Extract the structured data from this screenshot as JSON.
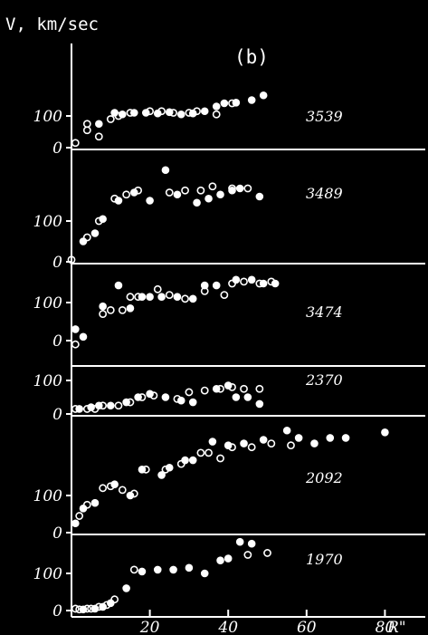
{
  "chart_data": {
    "type": "scatter",
    "figure_label": "(b)",
    "ylabel": "V, km/sec",
    "xlabel": "R\"",
    "xlim": [
      0,
      90
    ],
    "x_ticks": [
      20,
      40,
      60,
      80
    ],
    "x_tick_labels": [
      "20",
      "40",
      "60",
      "80"
    ],
    "legend": "none",
    "grid": false,
    "panels": [
      {
        "name": "3539",
        "y_ticks": [
          0,
          100
        ],
        "y_tick_labels": [
          "0",
          "100"
        ],
        "open": [
          [
            1,
            15
          ],
          [
            4,
            55
          ],
          [
            4,
            75
          ],
          [
            7,
            35
          ],
          [
            10,
            90
          ],
          [
            12,
            100
          ],
          [
            15,
            110
          ],
          [
            20,
            115
          ],
          [
            23,
            115
          ],
          [
            26,
            110
          ],
          [
            30,
            110
          ],
          [
            32,
            115
          ],
          [
            37,
            105
          ],
          [
            41,
            140
          ]
        ],
        "filled": [
          [
            7,
            75
          ],
          [
            11,
            110
          ],
          [
            13,
            105
          ],
          [
            16,
            110
          ],
          [
            19,
            110
          ],
          [
            22,
            108
          ],
          [
            25,
            112
          ],
          [
            28,
            105
          ],
          [
            31,
            108
          ],
          [
            34,
            115
          ],
          [
            37,
            130
          ],
          [
            39,
            140
          ],
          [
            42,
            142
          ],
          [
            46,
            150
          ],
          [
            49,
            165
          ]
        ]
      },
      {
        "name": "3489",
        "y_ticks": [
          0,
          100
        ],
        "y_tick_labels": [
          "0",
          "100"
        ],
        "open": [
          [
            0,
            5
          ],
          [
            4,
            60
          ],
          [
            7,
            100
          ],
          [
            11,
            155
          ],
          [
            14,
            165
          ],
          [
            17,
            175
          ],
          [
            25,
            170
          ],
          [
            29,
            175
          ],
          [
            33,
            175
          ],
          [
            36,
            185
          ],
          [
            41,
            180
          ],
          [
            45,
            180
          ]
        ],
        "filled": [
          [
            3,
            50
          ],
          [
            6,
            70
          ],
          [
            8,
            105
          ],
          [
            12,
            150
          ],
          [
            16,
            170
          ],
          [
            20,
            150
          ],
          [
            24,
            225
          ],
          [
            27,
            165
          ],
          [
            32,
            145
          ],
          [
            35,
            155
          ],
          [
            38,
            165
          ],
          [
            41,
            175
          ],
          [
            43,
            180
          ],
          [
            48,
            160
          ]
        ]
      },
      {
        "name": "3474",
        "y_ticks": [
          0,
          100
        ],
        "y_tick_labels": [
          "0",
          "100"
        ],
        "open": [
          [
            1,
            -10
          ],
          [
            8,
            70
          ],
          [
            10,
            80
          ],
          [
            13,
            80
          ],
          [
            15,
            115
          ],
          [
            17,
            115
          ],
          [
            22,
            135
          ],
          [
            25,
            120
          ],
          [
            29,
            110
          ],
          [
            34,
            130
          ],
          [
            39,
            120
          ],
          [
            41,
            150
          ],
          [
            44,
            155
          ],
          [
            48,
            150
          ],
          [
            51,
            155
          ]
        ],
        "filled": [
          [
            1,
            30
          ],
          [
            3,
            10
          ],
          [
            8,
            90
          ],
          [
            12,
            145
          ],
          [
            15,
            85
          ],
          [
            18,
            115
          ],
          [
            20,
            115
          ],
          [
            23,
            115
          ],
          [
            27,
            115
          ],
          [
            31,
            110
          ],
          [
            34,
            145
          ],
          [
            37,
            145
          ],
          [
            42,
            160
          ],
          [
            46,
            160
          ],
          [
            49,
            150
          ],
          [
            52,
            150
          ]
        ]
      },
      {
        "name": "2370",
        "y_ticks": [
          0,
          100
        ],
        "y_tick_labels": [
          "0",
          "100"
        ],
        "open": [
          [
            1,
            15
          ],
          [
            4,
            15
          ],
          [
            6,
            15
          ],
          [
            8,
            25
          ],
          [
            12,
            25
          ],
          [
            15,
            35
          ],
          [
            18,
            50
          ],
          [
            21,
            55
          ],
          [
            27,
            45
          ],
          [
            30,
            65
          ],
          [
            34,
            70
          ],
          [
            38,
            75
          ],
          [
            41,
            80
          ],
          [
            44,
            75
          ],
          [
            48,
            75
          ]
        ],
        "filled": [
          [
            2,
            15
          ],
          [
            5,
            20
          ],
          [
            7,
            25
          ],
          [
            10,
            25
          ],
          [
            14,
            35
          ],
          [
            17,
            50
          ],
          [
            20,
            60
          ],
          [
            24,
            50
          ],
          [
            28,
            40
          ],
          [
            31,
            35
          ],
          [
            37,
            75
          ],
          [
            40,
            85
          ],
          [
            42,
            50
          ],
          [
            45,
            50
          ],
          [
            48,
            30
          ]
        ]
      },
      {
        "name": "2092",
        "y_ticks": [
          0,
          100
        ],
        "y_tick_labels": [
          "0",
          "100"
        ],
        "open": [
          [
            2,
            45
          ],
          [
            4,
            75
          ],
          [
            8,
            120
          ],
          [
            10,
            125
          ],
          [
            13,
            115
          ],
          [
            16,
            105
          ],
          [
            19,
            170
          ],
          [
            24,
            170
          ],
          [
            28,
            185
          ],
          [
            33,
            215
          ],
          [
            35,
            215
          ],
          [
            38,
            200
          ],
          [
            41,
            230
          ],
          [
            46,
            230
          ],
          [
            51,
            240
          ],
          [
            56,
            235
          ]
        ],
        "filled": [
          [
            1,
            25
          ],
          [
            3,
            65
          ],
          [
            6,
            80
          ],
          [
            11,
            130
          ],
          [
            15,
            100
          ],
          [
            18,
            170
          ],
          [
            23,
            155
          ],
          [
            25,
            175
          ],
          [
            29,
            195
          ],
          [
            31,
            195
          ],
          [
            36,
            245
          ],
          [
            40,
            235
          ],
          [
            44,
            240
          ],
          [
            49,
            250
          ],
          [
            55,
            275
          ],
          [
            58,
            255
          ],
          [
            62,
            240
          ],
          [
            66,
            255
          ],
          [
            70,
            255
          ],
          [
            80,
            270
          ]
        ]
      },
      {
        "name": "1970",
        "y_ticks": [
          0,
          100
        ],
        "y_tick_labels": [
          "0",
          "100"
        ],
        "open": [
          [
            1,
            5
          ],
          [
            2,
            3
          ],
          [
            4,
            5
          ],
          [
            5,
            5
          ],
          [
            7,
            10
          ],
          [
            9,
            15
          ],
          [
            11,
            30
          ],
          [
            16,
            110
          ],
          [
            45,
            150
          ],
          [
            50,
            155
          ]
        ],
        "filled": [
          [
            3,
            3
          ],
          [
            6,
            5
          ],
          [
            8,
            10
          ],
          [
            10,
            20
          ],
          [
            14,
            60
          ],
          [
            18,
            105
          ],
          [
            22,
            110
          ],
          [
            26,
            110
          ],
          [
            30,
            115
          ],
          [
            34,
            100
          ],
          [
            38,
            135
          ],
          [
            40,
            140
          ],
          [
            43,
            185
          ],
          [
            46,
            180
          ]
        ]
      }
    ]
  }
}
